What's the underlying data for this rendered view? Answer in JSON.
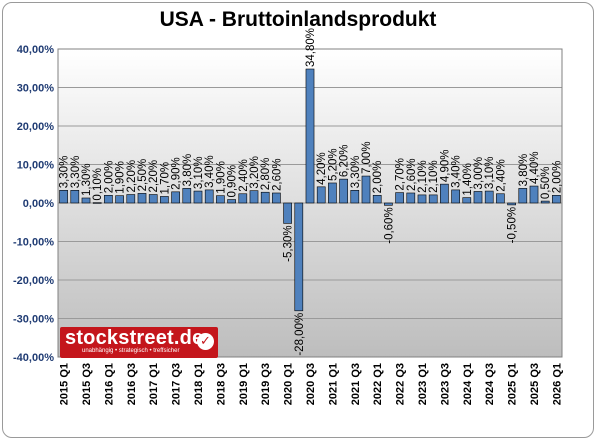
{
  "chart_data": {
    "type": "bar",
    "title": "USA - Bruttoinlandsprodukt",
    "xlabel": "",
    "ylabel": "",
    "ylim": [
      -40,
      40
    ],
    "yticks": [
      {
        "value": 40,
        "label": "40,00%"
      },
      {
        "value": 30,
        "label": "30,00%"
      },
      {
        "value": 20,
        "label": "20,00%"
      },
      {
        "value": 10,
        "label": "10,00%"
      },
      {
        "value": 0,
        "label": "0,00%"
      },
      {
        "value": -10,
        "label": "-10,00%"
      },
      {
        "value": -20,
        "label": "-20,00%"
      },
      {
        "value": -30,
        "label": "-30,00%"
      },
      {
        "value": -40,
        "label": "-40,00%"
      }
    ],
    "grid": true,
    "legend": "none",
    "categories": [
      "2015 Q1",
      "2015 Q2",
      "2015 Q3",
      "2015 Q4",
      "2016 Q1",
      "2016 Q2",
      "2016 Q3",
      "2016 Q4",
      "2017 Q1",
      "2017 Q2",
      "2017 Q3",
      "2017 Q4",
      "2018 Q1",
      "2018 Q2",
      "2018 Q3",
      "2018 Q4",
      "2019 Q1",
      "2019 Q2",
      "2019 Q3",
      "2019 Q4",
      "2020 Q1",
      "2020 Q2",
      "2020 Q3",
      "2020 Q4",
      "2021 Q1",
      "2021 Q2",
      "2021 Q3",
      "2021 Q4",
      "2022 Q1",
      "2022 Q2",
      "2022 Q3",
      "2022 Q4",
      "2023 Q1",
      "2023 Q2",
      "2023 Q3",
      "2023 Q4",
      "2024 Q1",
      "2024 Q2",
      "2024 Q3",
      "2024 Q4",
      "2025 Q1",
      "2025 Q2",
      "2025 Q3",
      "2025 Q4",
      "2026 Q1"
    ],
    "shown_categories": [
      "2015 Q1",
      "2015 Q3",
      "2016 Q1",
      "2016 Q3",
      "2017 Q1",
      "2017 Q3",
      "2018 Q1",
      "2018 Q3",
      "2019 Q1",
      "2019 Q3",
      "2020 Q1",
      "2020 Q3",
      "2021 Q1",
      "2021 Q3",
      "2022 Q1",
      "2022 Q3",
      "2023 Q1",
      "2023 Q3",
      "2024 Q1",
      "2024 Q3",
      "2025 Q1",
      "2025 Q3",
      "2026 Q1"
    ],
    "values": [
      3.3,
      3.3,
      1.3,
      0.1,
      2.0,
      1.9,
      2.2,
      2.5,
      2.2,
      1.7,
      2.9,
      3.8,
      3.1,
      3.4,
      1.9,
      0.9,
      2.4,
      3.2,
      2.8,
      2.6,
      -5.3,
      -28.0,
      34.8,
      4.2,
      5.2,
      6.2,
      3.3,
      7.0,
      2.0,
      -0.6,
      2.7,
      2.6,
      2.1,
      2.1,
      4.9,
      3.4,
      1.4,
      3.0,
      3.1,
      2.4,
      -0.5,
      3.8,
      4.4,
      0.5,
      2.0
    ],
    "value_labels": [
      "3,30%",
      "3,30%",
      "1,30%",
      "0,10%",
      "2,00%",
      "1,90%",
      "2,20%",
      "2,50%",
      "2,20%",
      "1,70%",
      "2,90%",
      "3,80%",
      "3,10%",
      "3,40%",
      "1,90%",
      "0,90%",
      "2,40%",
      "3,20%",
      "2,80%",
      "2,60%",
      "-5,30%",
      "-28,00%",
      "34,80%",
      "4,20%",
      "5,20%",
      "6,20%",
      "3,30%",
      "7,00%",
      "2,00%",
      "-0,60%",
      "2,70%",
      "2,60%",
      "2,10%",
      "2,10%",
      "4,90%",
      "3,40%",
      "1,40%",
      "3,00%",
      "3,10%",
      "2,40%",
      "-0,50%",
      "3,80%",
      "4,40%",
      "0,50%",
      "2,00%"
    ],
    "colors": {
      "bar": "#4f81bd",
      "bar_edge": "#000000",
      "axis_text": "#1f3b73",
      "grid": "#9a9a9a"
    }
  },
  "logo": {
    "name": "stockstreet.de",
    "tagline": "unabhängig • strategisch • treffsicher",
    "check": "✓"
  }
}
